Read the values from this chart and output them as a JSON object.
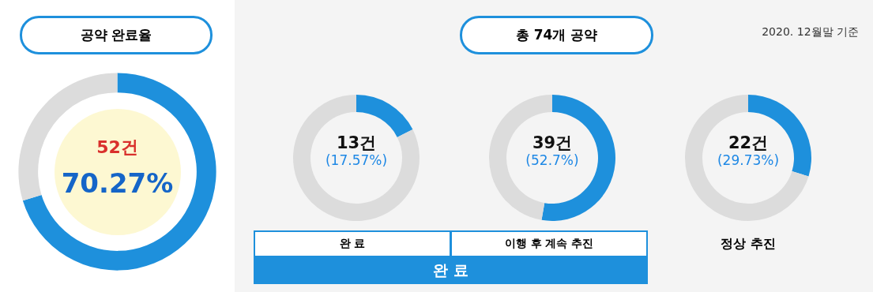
{
  "chart_data": [
    {
      "type": "donut",
      "title": "공약 완료율",
      "categories": [
        null,
        null
      ],
      "values": [
        70.27,
        29.73
      ],
      "colors": [
        "#1e90dc",
        "#dcdcdc"
      ],
      "value_labels": [
        "70.27%",
        null
      ],
      "annotations": [
        "52건"
      ]
    },
    {
      "type": "other",
      "title": "총 74개 공약",
      "annotations": [
        "2020. 12월말 기준",
        "완 료"
      ]
    },
    {
      "type": "donut",
      "xlabel": "완 료",
      "categories": [
        null,
        null
      ],
      "values": [
        17.57,
        82.43
      ],
      "colors": [
        "#1e90dc",
        "#dcdcdc"
      ],
      "annotations": [
        "13건",
        "(17.57%)"
      ]
    },
    {
      "type": "donut",
      "xlabel": "이행 후 계속 추진",
      "categories": [
        null,
        null
      ],
      "values": [
        52.7,
        47.3
      ],
      "colors": [
        "#1e90dc",
        "#dcdcdc"
      ],
      "annotations": [
        "39건",
        "(52.7%)"
      ]
    },
    {
      "type": "donut",
      "xlabel": "정상 추진",
      "categories": [
        null,
        null
      ],
      "values": [
        29.73,
        70.27
      ],
      "colors": [
        "#1e90dc",
        "#dcdcdc"
      ],
      "annotations": [
        "22건",
        "(29.73%)"
      ]
    }
  ]
}
